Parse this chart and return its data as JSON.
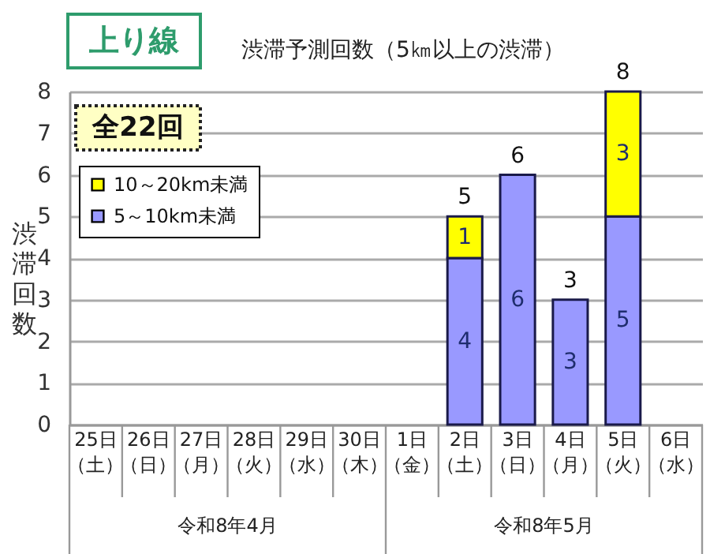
{
  "chart_data": {
    "type": "bar",
    "title": "渋滞予測回数（5㎞以上の渋滞）",
    "ylabel": "渋滞回数",
    "annotations": [
      "上り線",
      "全22回",
      "令和8年4月",
      "令和8年5月"
    ],
    "categories": [
      "25日（土）",
      "26日（日）",
      "27日（月）",
      "28日（火）",
      "29日（水）",
      "30日（木）",
      "1日（金）",
      "2日（土）",
      "3日（日）",
      "4日（月）",
      "5日（火）",
      "6日（水）"
    ],
    "series": [
      {
        "name": "5～10km未満",
        "color": "#9999ff",
        "values": [
          null,
          null,
          null,
          null,
          null,
          null,
          null,
          4,
          6,
          3,
          5,
          null
        ]
      },
      {
        "name": "10～20km未満",
        "color": "#ffff00",
        "values": [
          null,
          null,
          null,
          null,
          null,
          null,
          null,
          1,
          null,
          null,
          3,
          null
        ]
      }
    ],
    "stacked": true,
    "ylim": [
      0,
      8
    ],
    "yticks": [
      0,
      1,
      2,
      3,
      4,
      5,
      6,
      7,
      8
    ],
    "grid": "y",
    "legend": "top left",
    "data_labels": true,
    "totals": [
      null,
      null,
      null,
      null,
      null,
      null,
      null,
      "5",
      "6",
      "3",
      "8",
      null
    ]
  }
}
